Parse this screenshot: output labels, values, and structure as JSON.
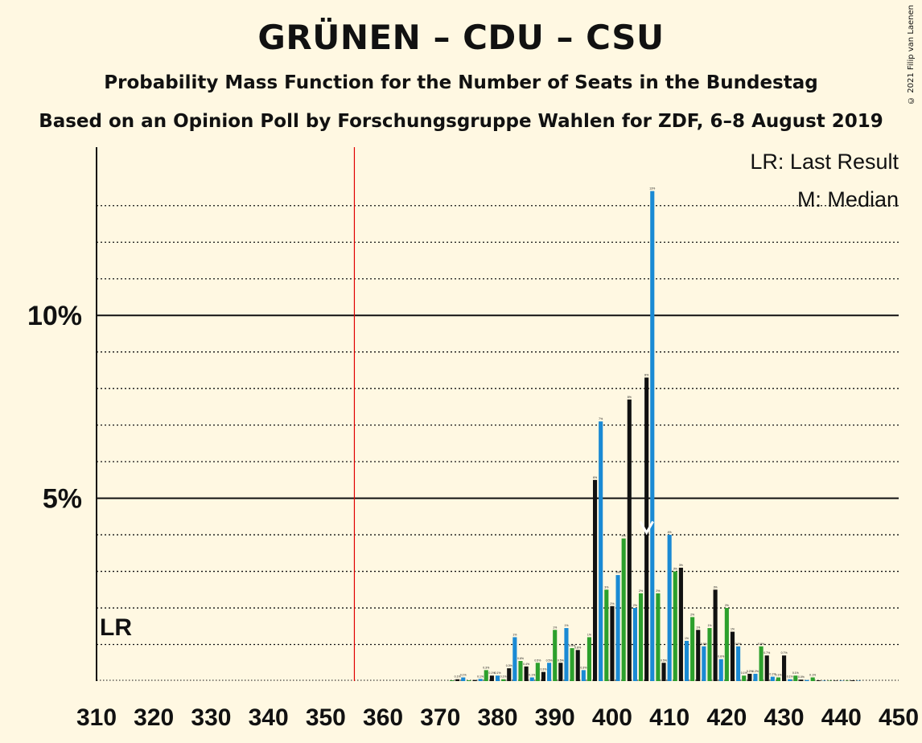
{
  "title": "GRÜNEN – CDU – CSU",
  "subtitle": "Probability Mass Function for the Number of Seats in the Bundestag",
  "subtitle2": "Based on an Opinion Poll by Forschungsgruppe Wahlen for ZDF, 6–8 August 2019",
  "copyright": "© 2021 Filip van Laenen",
  "legend": {
    "lr": "LR: Last Result",
    "median": "M: Median"
  },
  "markers": {
    "lr_label": "LR",
    "median_label": "M"
  },
  "colors": {
    "background": "#FFF8E2",
    "black": "#111111",
    "blue": "#1A8AD4",
    "green": "#2CA02C",
    "majority_line": "#E00000"
  },
  "chart_data": {
    "type": "bar",
    "xlim": [
      310,
      450
    ],
    "ylim": [
      0,
      14.6
    ],
    "x_ticks": [
      310,
      320,
      330,
      340,
      350,
      360,
      370,
      380,
      390,
      400,
      410,
      420,
      430,
      440,
      450
    ],
    "y_ticks": [
      {
        "value": 5,
        "label": "5%"
      },
      {
        "value": 10,
        "label": "10%"
      }
    ],
    "minor_gridlines": [
      1,
      2,
      3,
      4,
      6,
      7,
      8,
      9,
      11,
      12,
      13
    ],
    "last_result_seats": 311,
    "majority_seats": 355,
    "median_seats": 406,
    "median_marker_value": 4.1,
    "color_cycle": [
      "black",
      "blue",
      "green"
    ],
    "color_cycle_start_seat": 310,
    "seats": [
      372,
      373,
      374,
      375,
      376,
      377,
      378,
      379,
      380,
      381,
      382,
      383,
      384,
      385,
      386,
      387,
      388,
      389,
      390,
      391,
      392,
      393,
      394,
      395,
      396,
      397,
      398,
      399,
      400,
      401,
      402,
      403,
      404,
      405,
      406,
      407,
      408,
      409,
      410,
      411,
      412,
      413,
      414,
      415,
      416,
      417,
      418,
      419,
      420,
      421,
      422,
      423,
      424,
      425,
      426,
      427,
      428,
      429,
      430,
      431,
      432,
      433,
      434,
      435,
      436,
      437,
      438,
      439,
      440,
      441,
      442,
      443
    ],
    "values": [
      0.02,
      0.05,
      0.1,
      0.02,
      0.03,
      0.06,
      0.3,
      0.15,
      0.15,
      0.05,
      0.35,
      1.2,
      0.55,
      0.4,
      0.1,
      0.5,
      0.25,
      0.5,
      1.4,
      0.5,
      1.45,
      0.9,
      0.85,
      0.3,
      1.2,
      5.5,
      7.1,
      2.5,
      2.05,
      2.9,
      3.9,
      7.7,
      2.0,
      2.4,
      8.3,
      13.4,
      2.4,
      0.5,
      4.0,
      3.0,
      3.1,
      1.1,
      1.75,
      1.4,
      0.95,
      1.45,
      2.5,
      0.6,
      2.0,
      1.35,
      0.95,
      0.15,
      0.2,
      0.2,
      0.95,
      0.7,
      0.12,
      0.1,
      0.7,
      0.05,
      0.15,
      0.04,
      0.03,
      0.1,
      0.02,
      0.01,
      0.01,
      0.01,
      0.01,
      0.01,
      0.02,
      0.01
    ]
  }
}
